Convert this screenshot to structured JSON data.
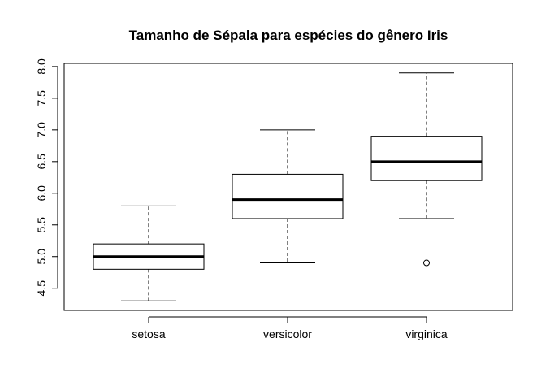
{
  "chart_data": {
    "type": "boxplot",
    "title": "Tamanho de Sépala para espécies do gênero Iris",
    "xlabel": "",
    "ylabel": "",
    "ylim": [
      4.15,
      8.05
    ],
    "yticks": [
      4.5,
      5.0,
      5.5,
      6.0,
      6.5,
      7.0,
      7.5,
      8.0
    ],
    "ytick_labels": [
      "4.5",
      "5.0",
      "5.5",
      "6.0",
      "6.5",
      "7.0",
      "7.5",
      "8.0"
    ],
    "categories": [
      "setosa",
      "versicolor",
      "virginica"
    ],
    "boxes": [
      {
        "category": "setosa",
        "whisker_low": 4.3,
        "q1": 4.8,
        "median": 5.0,
        "q3": 5.2,
        "whisker_high": 5.8,
        "outliers": []
      },
      {
        "category": "versicolor",
        "whisker_low": 4.9,
        "q1": 5.6,
        "median": 5.9,
        "q3": 6.3,
        "whisker_high": 7.0,
        "outliers": []
      },
      {
        "category": "virginica",
        "whisker_low": 5.6,
        "q1": 6.2,
        "median": 6.5,
        "q3": 6.9,
        "whisker_high": 7.9,
        "outliers": [
          4.9
        ]
      }
    ],
    "grid": false,
    "legend": "none"
  }
}
